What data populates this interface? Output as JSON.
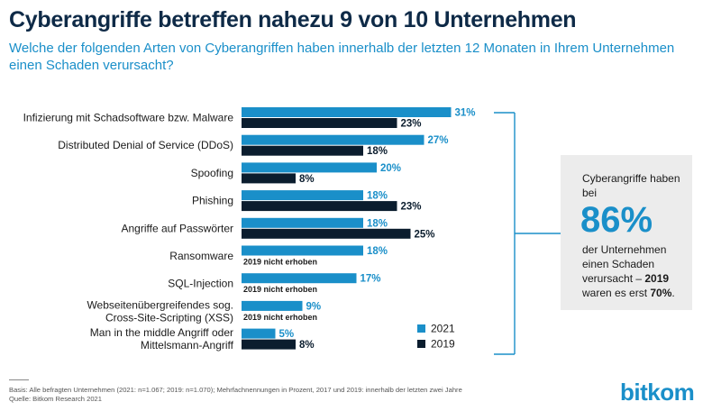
{
  "header": {
    "title": "Cyberangriffe betreffen nahezu 9 von 10 Unternehmen",
    "subtitle": "Welche der folgenden Arten von Cyberangriffen haben innerhalb der letzten 12 Monaten in Ihrem Unternehmen einen Schaden verursacht?"
  },
  "chart_data": {
    "type": "bar",
    "orientation": "horizontal",
    "categories": [
      [
        "Infizierung mit Schadsoftware bzw. Malware"
      ],
      [
        "Distributed Denial of Service (DDoS)"
      ],
      [
        "Spoofing"
      ],
      [
        "Phishing"
      ],
      [
        "Angriffe auf Passwörter"
      ],
      [
        "Ransomware"
      ],
      [
        "SQL-Injection"
      ],
      [
        "Webseitenübergreifendes sog.",
        "Cross-Site-Scripting (XSS)"
      ],
      [
        "Man in the middle Angriff oder",
        "Mittelsmann-Angriff"
      ]
    ],
    "series": [
      {
        "name": "2021",
        "values": [
          31,
          27,
          20,
          18,
          18,
          18,
          17,
          9,
          5
        ],
        "color": "#1a8fc9"
      },
      {
        "name": "2019",
        "values": [
          23,
          18,
          8,
          23,
          25,
          null,
          null,
          null,
          8
        ],
        "color": "#0b1d2e"
      }
    ],
    "value_suffix": "%",
    "missing_label": "2019 nicht erhoben",
    "legend_position": "bottom-right"
  },
  "infobox": {
    "top_text": "Cyberangriffe haben bei",
    "percent": "86%",
    "bottom_text": "der Unternehmen einen Schaden verursacht –",
    "bottom_year": "2019",
    "bottom_tail1": "waren es erst",
    "bottom_pct": "70%",
    "bottom_tail2": "."
  },
  "footer": {
    "basis": "Basis: Alle befragten Unternehmen (2021: n=1.067; 2019: n=1.070); Mehrfachnennungen in Prozent, 2017 und 2019: innerhalb der letzten zwei Jahre",
    "source": "Quelle: Bitkom Research 2021",
    "logo": "bitkom"
  }
}
